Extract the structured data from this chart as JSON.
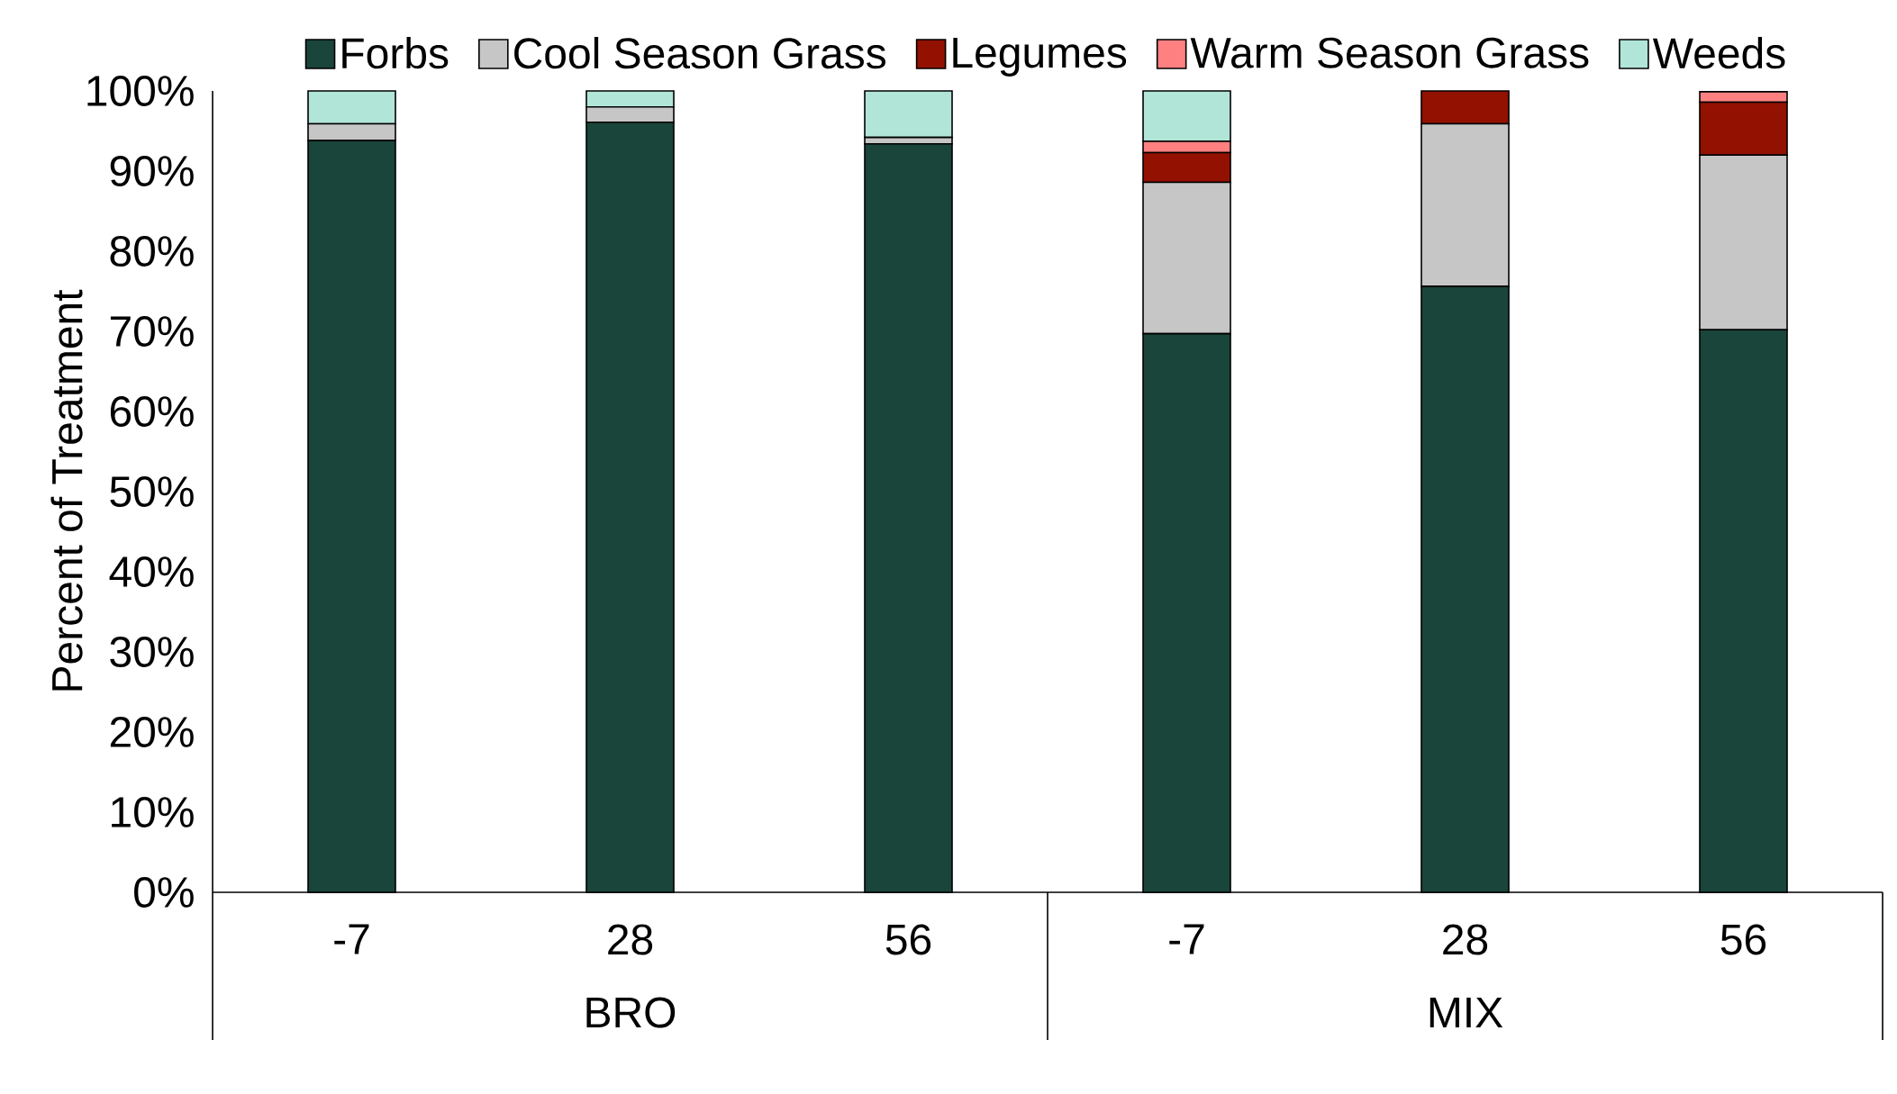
{
  "chart_data": {
    "type": "bar",
    "stacked": true,
    "ylabel": "Percent of Treatment",
    "legend": "top",
    "categories": [
      "-7",
      "28",
      "56",
      "-7",
      "28",
      "56"
    ],
    "series": [
      {
        "name": "Forbs",
        "color": "#1a453a",
        "values": [
          93.8,
          96.1,
          93.4,
          69.7,
          75.6,
          70.2
        ]
      },
      {
        "name": "Cool Season Grass",
        "color": "#c6c6c6",
        "values": [
          2.1,
          1.9,
          0.8,
          18.9,
          20.3,
          21.8
        ]
      },
      {
        "name": "Legumes",
        "color": "#931100",
        "values": [
          0,
          0,
          0,
          3.7,
          4.1,
          6.6
        ]
      },
      {
        "name": "Warm Season Grass",
        "color": "#ff8080",
        "values": [
          0,
          0,
          0,
          1.4,
          0,
          1.3
        ]
      },
      {
        "name": "Weeds",
        "color": "#b1e5d8",
        "values": [
          4.1,
          2.0,
          5.8,
          6.3,
          0,
          null
        ]
      }
    ],
    "ylim": [
      0,
      100
    ],
    "yticks": [
      {
        "value": 0,
        "label": "0%"
      },
      {
        "value": 10,
        "label": "10%"
      },
      {
        "value": 20,
        "label": "20%"
      },
      {
        "value": 30,
        "label": "30%"
      },
      {
        "value": 40,
        "label": "40%"
      },
      {
        "value": 50,
        "label": "50%"
      },
      {
        "value": 60,
        "label": "60%"
      },
      {
        "value": 70,
        "label": "70%"
      },
      {
        "value": 80,
        "label": "80%"
      },
      {
        "value": 90,
        "label": "90%"
      },
      {
        "value": 100,
        "label": "100%"
      }
    ],
    "annotations": [
      "BRO",
      "MIX"
    ]
  }
}
